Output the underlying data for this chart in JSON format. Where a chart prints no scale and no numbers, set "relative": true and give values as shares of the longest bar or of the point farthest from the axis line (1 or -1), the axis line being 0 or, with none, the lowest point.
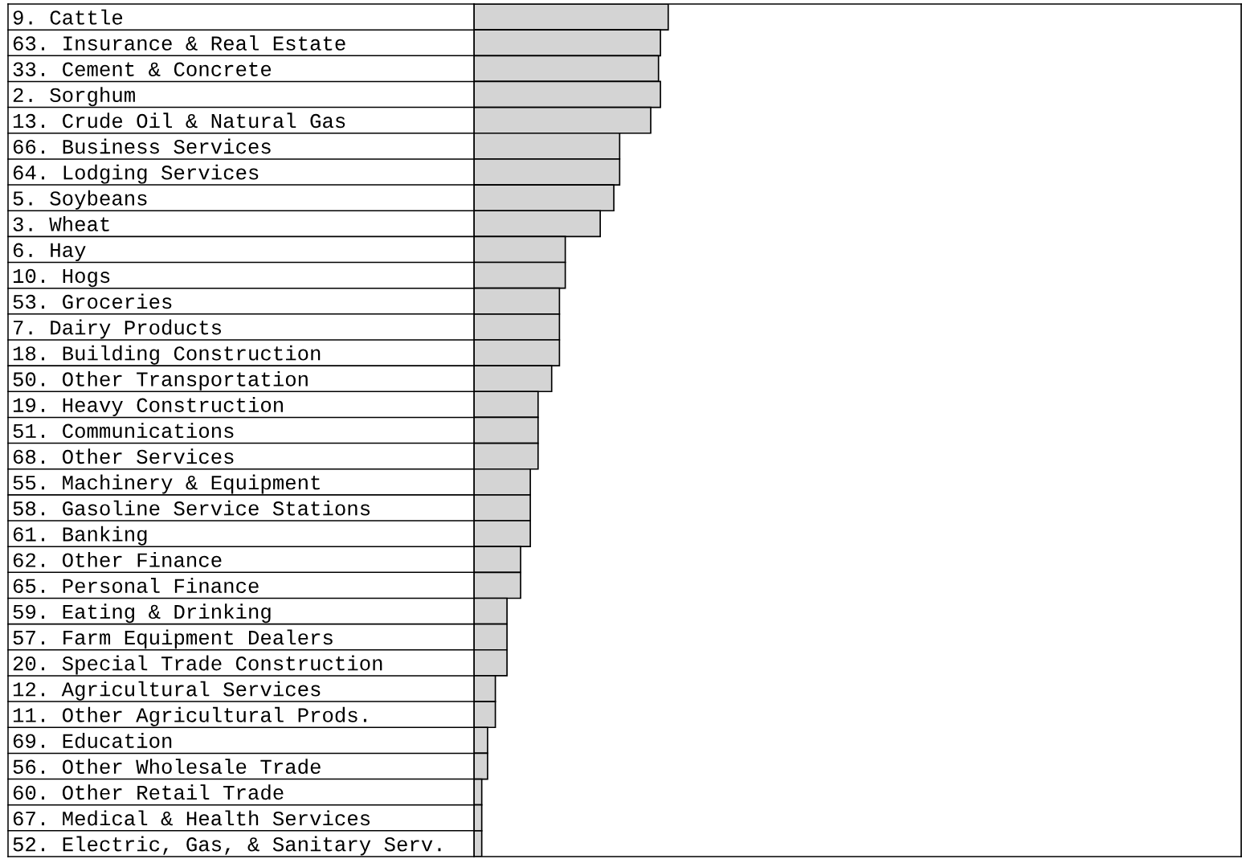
{
  "chart_data": {
    "type": "bar",
    "orientation": "horizontal",
    "relative": true,
    "grid": false,
    "legend": false,
    "color": "#d4d4d4",
    "categories": [
      "9. Cattle",
      "63. Insurance & Real Estate",
      "33. Cement & Concrete",
      "2. Sorghum",
      "13. Crude Oil & Natural Gas",
      "66. Business Services",
      "64. Lodging Services",
      "5. Soybeans",
      "3. Wheat",
      "6. Hay",
      "10. Hogs",
      "53. Groceries",
      "7. Dairy Products",
      "18. Building Construction",
      "50. Other Transportation",
      "19. Heavy Construction",
      "51. Communications",
      "68. Other Services",
      "55. Machinery & Equipment",
      "58. Gasoline Service Stations",
      "61. Banking",
      "62. Other Finance",
      "65. Personal Finance",
      "59. Eating & Drinking",
      "57. Farm Equipment Dealers",
      "20. Special Trade Construction",
      "12. Agricultural Services",
      "11. Other Agricultural Prods.",
      "69. Education",
      "56. Other Wholesale Trade",
      "60. Other Retail Trade",
      "67. Medical & Health Services",
      "52. Electric, Gas, & Sanitary Serv."
    ],
    "values": [
      1.0,
      0.96,
      0.95,
      0.96,
      0.91,
      0.75,
      0.75,
      0.72,
      0.65,
      0.47,
      0.47,
      0.44,
      0.44,
      0.44,
      0.4,
      0.33,
      0.33,
      0.33,
      0.29,
      0.29,
      0.29,
      0.24,
      0.24,
      0.17,
      0.17,
      0.17,
      0.11,
      0.11,
      0.07,
      0.07,
      0.04,
      0.04,
      0.04
    ]
  }
}
